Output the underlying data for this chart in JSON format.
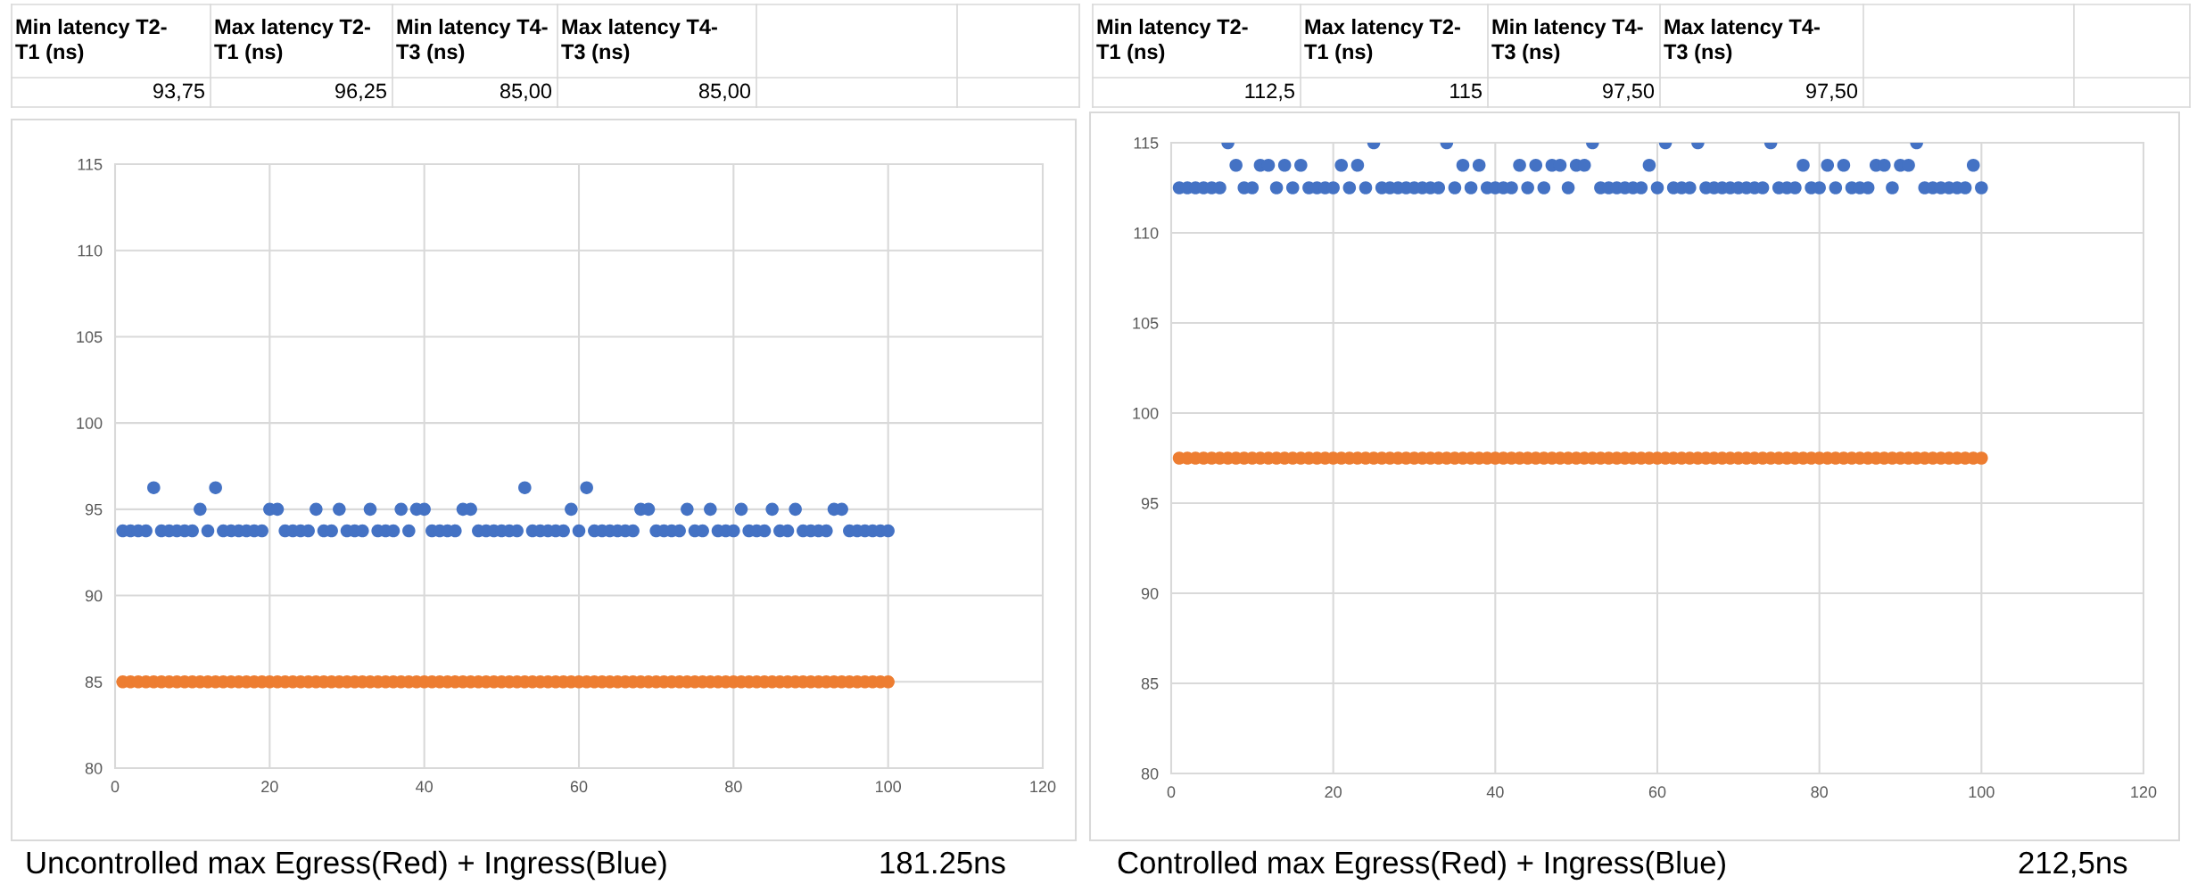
{
  "chart_data": [
    {
      "type": "scatter",
      "x": [
        1,
        2,
        3,
        4,
        5,
        6,
        7,
        8,
        9,
        10,
        11,
        12,
        13,
        14,
        15,
        16,
        17,
        18,
        19,
        20,
        21,
        22,
        23,
        24,
        25,
        26,
        27,
        28,
        29,
        30,
        31,
        32,
        33,
        34,
        35,
        36,
        37,
        38,
        39,
        40,
        41,
        42,
        43,
        44,
        45,
        46,
        47,
        48,
        49,
        50,
        51,
        52,
        53,
        54,
        55,
        56,
        57,
        58,
        59,
        60,
        61,
        62,
        63,
        64,
        65,
        66,
        67,
        68,
        69,
        70,
        71,
        72,
        73,
        74,
        75,
        76,
        77,
        78,
        79,
        80,
        81,
        82,
        83,
        84,
        85,
        86,
        87,
        88,
        89,
        90,
        91,
        92,
        93,
        94,
        95,
        96,
        97,
        98,
        99,
        100
      ],
      "series": [
        {
          "color": "#4472c4",
          "values": [
            93.75,
            93.75,
            93.75,
            93.75,
            96.25,
            93.75,
            93.75,
            93.75,
            93.75,
            93.75,
            95,
            93.75,
            96.25,
            93.75,
            93.75,
            93.75,
            93.75,
            93.75,
            93.75,
            95,
            95,
            93.75,
            93.75,
            93.75,
            93.75,
            95,
            93.75,
            93.75,
            95,
            93.75,
            93.75,
            93.75,
            95,
            93.75,
            93.75,
            93.75,
            95,
            93.75,
            95,
            95,
            93.75,
            93.75,
            93.75,
            93.75,
            95,
            95,
            93.75,
            93.75,
            93.75,
            93.75,
            93.75,
            93.75,
            96.25,
            93.75,
            93.75,
            93.75,
            93.75,
            93.75,
            95,
            93.75,
            96.25,
            93.75,
            93.75,
            93.75,
            93.75,
            93.75,
            93.75,
            95,
            95,
            93.75,
            93.75,
            93.75,
            93.75,
            95,
            93.75,
            93.75,
            95,
            93.75,
            93.75,
            93.75,
            95,
            93.75,
            93.75,
            93.75,
            95,
            93.75,
            93.75,
            95,
            93.75,
            93.75,
            93.75,
            93.75,
            95,
            95,
            93.75,
            93.75,
            93.75,
            93.75,
            93.75,
            93.75
          ]
        },
        {
          "color": "#ed7d31",
          "values": [
            85,
            85,
            85,
            85,
            85,
            85,
            85,
            85,
            85,
            85,
            85,
            85,
            85,
            85,
            85,
            85,
            85,
            85,
            85,
            85,
            85,
            85,
            85,
            85,
            85,
            85,
            85,
            85,
            85,
            85,
            85,
            85,
            85,
            85,
            85,
            85,
            85,
            85,
            85,
            85,
            85,
            85,
            85,
            85,
            85,
            85,
            85,
            85,
            85,
            85,
            85,
            85,
            85,
            85,
            85,
            85,
            85,
            85,
            85,
            85,
            85,
            85,
            85,
            85,
            85,
            85,
            85,
            85,
            85,
            85,
            85,
            85,
            85,
            85,
            85,
            85,
            85,
            85,
            85,
            85,
            85,
            85,
            85,
            85,
            85,
            85,
            85,
            85,
            85,
            85,
            85,
            85,
            85,
            85,
            85,
            85,
            85,
            85,
            85,
            85
          ]
        }
      ],
      "xlim": [
        0,
        120
      ],
      "xticks": [
        0,
        20,
        40,
        60,
        80,
        100,
        120
      ],
      "ylim": [
        80,
        115
      ],
      "yticks": [
        80,
        85,
        90,
        95,
        100,
        105,
        110,
        115
      ],
      "grid": true,
      "marker": "circle",
      "annotations": [
        "Min latency T2-T1 (ns)",
        "Max latency T2-T1 (ns)",
        "Min latency T4-T3 (ns)",
        "Max latency T4-T3 (ns)",
        "93,75",
        "96,25",
        "85,00",
        "85,00",
        "Uncontrolled max Egress(Red) + Ingress(Blue)",
        "181.25ns"
      ]
    },
    {
      "type": "scatter",
      "x": [
        1,
        2,
        3,
        4,
        5,
        6,
        7,
        8,
        9,
        10,
        11,
        12,
        13,
        14,
        15,
        16,
        17,
        18,
        19,
        20,
        21,
        22,
        23,
        24,
        25,
        26,
        27,
        28,
        29,
        30,
        31,
        32,
        33,
        34,
        35,
        36,
        37,
        38,
        39,
        40,
        41,
        42,
        43,
        44,
        45,
        46,
        47,
        48,
        49,
        50,
        51,
        52,
        53,
        54,
        55,
        56,
        57,
        58,
        59,
        60,
        61,
        62,
        63,
        64,
        65,
        66,
        67,
        68,
        69,
        70,
        71,
        72,
        73,
        74,
        75,
        76,
        77,
        78,
        79,
        80,
        81,
        82,
        83,
        84,
        85,
        86,
        87,
        88,
        89,
        90,
        91,
        92,
        93,
        94,
        95,
        96,
        97,
        98,
        99,
        100
      ],
      "series": [
        {
          "color": "#4472c4",
          "values": [
            112.5,
            112.5,
            112.5,
            112.5,
            112.5,
            112.5,
            115,
            113.75,
            112.5,
            112.5,
            113.75,
            113.75,
            112.5,
            113.75,
            112.5,
            113.75,
            112.5,
            112.5,
            112.5,
            112.5,
            113.75,
            112.5,
            113.75,
            112.5,
            115,
            112.5,
            112.5,
            112.5,
            112.5,
            112.5,
            112.5,
            112.5,
            112.5,
            115,
            112.5,
            113.75,
            112.5,
            113.75,
            112.5,
            112.5,
            112.5,
            112.5,
            113.75,
            112.5,
            113.75,
            112.5,
            113.75,
            113.75,
            112.5,
            113.75,
            113.75,
            115,
            112.5,
            112.5,
            112.5,
            112.5,
            112.5,
            112.5,
            113.75,
            112.5,
            115,
            112.5,
            112.5,
            112.5,
            115,
            112.5,
            112.5,
            112.5,
            112.5,
            112.5,
            112.5,
            112.5,
            112.5,
            115,
            112.5,
            112.5,
            112.5,
            113.75,
            112.5,
            112.5,
            113.75,
            112.5,
            113.75,
            112.5,
            112.5,
            112.5,
            113.75,
            113.75,
            112.5,
            113.75,
            113.75,
            115,
            112.5,
            112.5,
            112.5,
            112.5,
            112.5,
            112.5,
            113.75,
            112.5
          ]
        },
        {
          "color": "#ed7d31",
          "values": [
            97.5,
            97.5,
            97.5,
            97.5,
            97.5,
            97.5,
            97.5,
            97.5,
            97.5,
            97.5,
            97.5,
            97.5,
            97.5,
            97.5,
            97.5,
            97.5,
            97.5,
            97.5,
            97.5,
            97.5,
            97.5,
            97.5,
            97.5,
            97.5,
            97.5,
            97.5,
            97.5,
            97.5,
            97.5,
            97.5,
            97.5,
            97.5,
            97.5,
            97.5,
            97.5,
            97.5,
            97.5,
            97.5,
            97.5,
            97.5,
            97.5,
            97.5,
            97.5,
            97.5,
            97.5,
            97.5,
            97.5,
            97.5,
            97.5,
            97.5,
            97.5,
            97.5,
            97.5,
            97.5,
            97.5,
            97.5,
            97.5,
            97.5,
            97.5,
            97.5,
            97.5,
            97.5,
            97.5,
            97.5,
            97.5,
            97.5,
            97.5,
            97.5,
            97.5,
            97.5,
            97.5,
            97.5,
            97.5,
            97.5,
            97.5,
            97.5,
            97.5,
            97.5,
            97.5,
            97.5,
            97.5,
            97.5,
            97.5,
            97.5,
            97.5,
            97.5,
            97.5,
            97.5,
            97.5,
            97.5,
            97.5,
            97.5,
            97.5,
            97.5,
            97.5,
            97.5,
            97.5,
            97.5,
            97.5,
            97.5
          ]
        }
      ],
      "xlim": [
        0,
        120
      ],
      "xticks": [
        0,
        20,
        40,
        60,
        80,
        100,
        120
      ],
      "ylim": [
        80,
        115
      ],
      "yticks": [
        80,
        85,
        90,
        95,
        100,
        105,
        110,
        115
      ],
      "grid": true,
      "marker": "circle",
      "annotations": [
        "Min latency T2-T1 (ns)",
        "Max latency T2-T1 (ns)",
        "Min latency T4-T3 (ns)",
        "Max latency T4-T3 (ns)",
        "112,5",
        "115",
        "97,50",
        "97,50",
        "Controlled max Egress(Red) + Ingress(Blue)",
        "212,5ns"
      ]
    }
  ]
}
